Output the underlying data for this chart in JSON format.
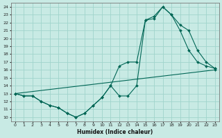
{
  "xlabel": "Humidex (Indice chaleur)",
  "background_color": "#c8eae4",
  "grid_color": "#a0d4cc",
  "line_color": "#006655",
  "xlim": [
    -0.5,
    23.5
  ],
  "ylim": [
    9.5,
    24.5
  ],
  "xticks": [
    0,
    1,
    2,
    3,
    4,
    5,
    6,
    7,
    8,
    9,
    10,
    11,
    12,
    13,
    14,
    15,
    16,
    17,
    18,
    19,
    20,
    21,
    22,
    23
  ],
  "yticks": [
    10,
    11,
    12,
    13,
    14,
    15,
    16,
    17,
    18,
    19,
    20,
    21,
    22,
    23,
    24
  ],
  "line1_x": [
    0,
    1,
    2,
    3,
    4,
    5,
    6,
    7,
    8,
    9,
    10,
    11,
    12,
    13,
    14,
    15,
    16,
    17,
    18,
    19,
    20,
    21,
    22,
    23
  ],
  "line1_y": [
    13,
    12.7,
    12.7,
    12.0,
    11.5,
    11.2,
    10.5,
    10.0,
    10.5,
    11.5,
    12.5,
    14.0,
    12.7,
    12.7,
    14.0,
    22.3,
    22.8,
    24.0,
    23.0,
    21.0,
    18.5,
    17.0,
    16.5,
    16.2
  ],
  "line2_x": [
    0,
    1,
    2,
    3,
    4,
    5,
    6,
    7,
    8,
    9,
    10,
    11,
    12,
    13,
    14,
    15,
    16,
    17,
    18,
    19,
    20,
    21,
    22,
    23
  ],
  "line2_y": [
    13,
    12.7,
    12.7,
    12.0,
    11.5,
    11.2,
    10.5,
    10.0,
    10.5,
    11.5,
    12.5,
    14.0,
    16.5,
    17.0,
    17.0,
    22.3,
    22.5,
    24.0,
    23.0,
    21.7,
    21.0,
    18.5,
    17.0,
    16.2
  ],
  "line3_x": [
    0,
    23
  ],
  "line3_y": [
    13,
    16
  ]
}
